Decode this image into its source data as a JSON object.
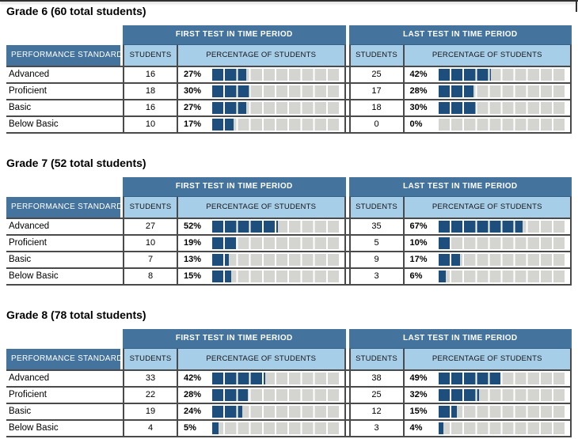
{
  "headers": {
    "performance_standard": "PERFORMANCE STANDARD",
    "students": "STUDENTS",
    "percentage": "PERCENTAGE OF STUDENTS",
    "first_test": "FIRST TEST IN TIME PERIOD",
    "last_test": "LAST TEST IN TIME PERIOD"
  },
  "colors": {
    "header_band": "#44749D",
    "column_header_bg": "#A7CEE9",
    "bar_fill": "#1E4F7C",
    "bar_track": "#D4D4D0",
    "grid_line": "#4A4A4A"
  },
  "sections": [
    {
      "title": "Grade 6 (60 total students)",
      "rows": [
        {
          "label": "Advanced",
          "first": {
            "students": "16",
            "pct": 27,
            "pct_label": "27%"
          },
          "last": {
            "students": "25",
            "pct": 42,
            "pct_label": "42%"
          }
        },
        {
          "label": "Proficient",
          "first": {
            "students": "18",
            "pct": 30,
            "pct_label": "30%"
          },
          "last": {
            "students": "17",
            "pct": 28,
            "pct_label": "28%"
          }
        },
        {
          "label": "Basic",
          "first": {
            "students": "16",
            "pct": 27,
            "pct_label": "27%"
          },
          "last": {
            "students": "18",
            "pct": 30,
            "pct_label": "30%"
          }
        },
        {
          "label": "Below Basic",
          "first": {
            "students": "10",
            "pct": 17,
            "pct_label": "17%"
          },
          "last": {
            "students": "0",
            "pct": 0,
            "pct_label": "0%"
          }
        }
      ]
    },
    {
      "title": "Grade 7 (52 total students)",
      "rows": [
        {
          "label": "Advanced",
          "first": {
            "students": "27",
            "pct": 52,
            "pct_label": "52%"
          },
          "last": {
            "students": "35",
            "pct": 67,
            "pct_label": "67%"
          }
        },
        {
          "label": "Proficient",
          "first": {
            "students": "10",
            "pct": 19,
            "pct_label": "19%"
          },
          "last": {
            "students": "5",
            "pct": 10,
            "pct_label": "10%"
          }
        },
        {
          "label": "Basic",
          "first": {
            "students": "7",
            "pct": 13,
            "pct_label": "13%"
          },
          "last": {
            "students": "9",
            "pct": 17,
            "pct_label": "17%"
          }
        },
        {
          "label": "Below Basic",
          "first": {
            "students": "8",
            "pct": 15,
            "pct_label": "15%"
          },
          "last": {
            "students": "3",
            "pct": 6,
            "pct_label": "6%"
          }
        }
      ]
    },
    {
      "title": "Grade 8 (78 total students)",
      "rows": [
        {
          "label": "Advanced",
          "first": {
            "students": "33",
            "pct": 42,
            "pct_label": "42%"
          },
          "last": {
            "students": "38",
            "pct": 49,
            "pct_label": "49%"
          }
        },
        {
          "label": "Proficient",
          "first": {
            "students": "22",
            "pct": 28,
            "pct_label": "28%"
          },
          "last": {
            "students": "25",
            "pct": 32,
            "pct_label": "32%"
          }
        },
        {
          "label": "Basic",
          "first": {
            "students": "19",
            "pct": 24,
            "pct_label": "24%"
          },
          "last": {
            "students": "12",
            "pct": 15,
            "pct_label": "15%"
          }
        },
        {
          "label": "Below Basic",
          "first": {
            "students": "4",
            "pct": 5,
            "pct_label": "5%"
          },
          "last": {
            "students": "3",
            "pct": 4,
            "pct_label": "4%"
          }
        }
      ]
    }
  ]
}
